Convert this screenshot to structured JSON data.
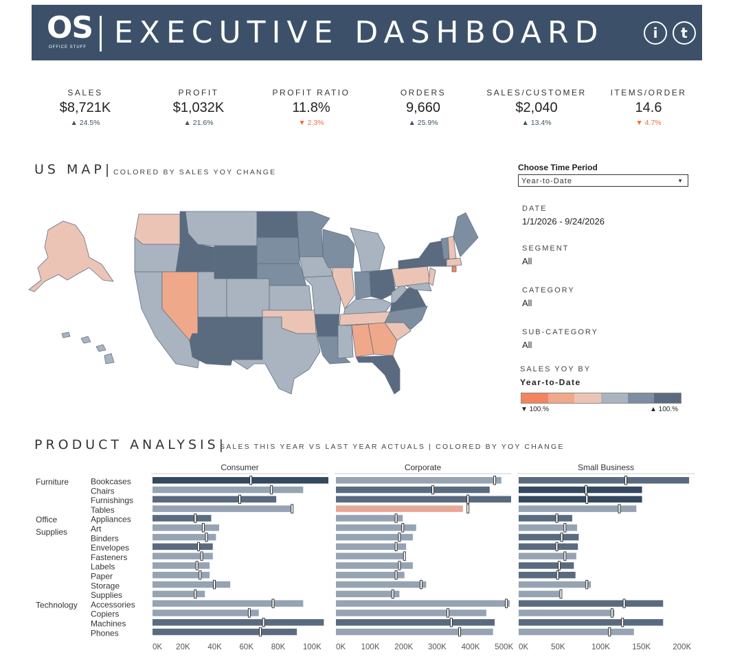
{
  "header": {
    "logo_text": "OS",
    "logo_sub": "OFFICE STUFF",
    "title": "EXECUTIVE DASHBOARD",
    "info_icon_label": "i",
    "tableau_icon_label": "t"
  },
  "kpis": [
    {
      "label": "SALES",
      "value": "$8,721K",
      "change": "▲ 24.5%",
      "direction": "up"
    },
    {
      "label": "PROFIT",
      "value": "$1,032K",
      "change": "▲ 21.6%",
      "direction": "up"
    },
    {
      "label": "PROFIT RATIO",
      "value": "11.8%",
      "change": "▼ 2.3%",
      "direction": "down"
    },
    {
      "label": "ORDERS",
      "value": "9,660",
      "change": "▲ 25.9%",
      "direction": "up"
    },
    {
      "label": "SALES/CUSTOMER",
      "value": "$2,040",
      "change": "▲ 13.4%",
      "direction": "up"
    },
    {
      "label": "ITEMS/ORDER",
      "value": "14.6",
      "change": "▼ 4.7%",
      "direction": "down"
    }
  ],
  "map": {
    "title": "US MAP|",
    "subtitle": "COLORED BY SALES YOY CHANGE"
  },
  "filters": {
    "time_period_label": "Choose Time Period",
    "time_period_value": "Year-to-Date",
    "date_label": "DATE",
    "date_value": "1/1/2026 - 9/24/2026",
    "segment_label": "SEGMENT",
    "segment_value": "All",
    "category_label": "CATEGORY",
    "category_value": "All",
    "subcategory_label": "SUB-CATEGORY",
    "subcategory_value": "All"
  },
  "legend": {
    "title": "SALES YOY BY",
    "subtitle": "Year-to-Date",
    "low_label": "▼ 100.%",
    "high_label": "▲ 100.%",
    "colors": [
      "#f4845f",
      "#f0a88a",
      "#ecc4b5",
      "#aab4c0",
      "#7d8ea1",
      "#5a6b80"
    ]
  },
  "colors": {
    "banner": "#3c5169",
    "up": "#3c5169",
    "down": "#f26b3a"
  },
  "product": {
    "title": "PRODUCT ANALYSIS|",
    "subtitle": "SALES THIS YEAR VS LAST YEAR ACTUALS | COLORED BY YOY CHANGE"
  },
  "chart_data": {
    "type": "bar",
    "categories": [
      {
        "category": "Furniture",
        "subs": [
          "Bookcases",
          "Chairs",
          "Furnishings",
          "Tables"
        ]
      },
      {
        "category": "Office\nSupplies",
        "subs": [
          "Appliances",
          "Art",
          "Binders",
          "Envelopes",
          "Fasteners",
          "Labels",
          "Paper",
          "Storage",
          "Supplies"
        ]
      },
      {
        "category": "Technology",
        "subs": [
          "Accessories",
          "Copiers",
          "Machines",
          "Phones"
        ]
      }
    ],
    "series": [
      {
        "name": "Consumer",
        "max": 110000,
        "ticks": [
          "0K",
          "20K",
          "40K",
          "60K",
          "80K",
          "100K"
        ],
        "tick_values": [
          0,
          20000,
          40000,
          60000,
          80000,
          100000
        ],
        "this_year": [
          112000,
          95000,
          78000,
          88000,
          37000,
          42000,
          40000,
          38000,
          38000,
          36000,
          36000,
          49000,
          33000,
          95000,
          67000,
          108000,
          91000
        ],
        "last_year": [
          62000,
          75000,
          55000,
          88000,
          27000,
          32000,
          34000,
          29000,
          31000,
          28000,
          30000,
          39000,
          27000,
          76000,
          61000,
          70000,
          68000
        ],
        "colors": [
          "#34495f",
          "#96a3b3",
          "#5a6b80",
          "#96a3b3",
          "#5a6b80",
          "#96a3b3",
          "#96a3b3",
          "#5a6b80",
          "#96a3b3",
          "#96a3b3",
          "#96a3b3",
          "#96a3b3",
          "#96a3b3",
          "#96a3b3",
          "#96a3b3",
          "#5a6b80",
          "#5a6b80"
        ]
      },
      {
        "name": "Corporate",
        "max": 520000,
        "ticks": [
          "0K",
          "100K",
          "200K",
          "300K",
          "400K",
          "500K"
        ],
        "tick_values": [
          0,
          100000,
          200000,
          300000,
          400000,
          500000
        ],
        "this_year": [
          495000,
          460000,
          540000,
          380000,
          200000,
          240000,
          230000,
          210000,
          205000,
          230000,
          205000,
          270000,
          190000,
          520000,
          450000,
          475000,
          470000
        ],
        "last_year": [
          475000,
          290000,
          395000,
          395000,
          180000,
          200000,
          190000,
          180000,
          205000,
          190000,
          180000,
          255000,
          170000,
          510000,
          335000,
          345000,
          370000
        ],
        "colors": [
          "#96a3b3",
          "#5a6b80",
          "#5a6b80",
          "#e8a897",
          "#96a3b3",
          "#96a3b3",
          "#96a3b3",
          "#96a3b3",
          "#96a3b3",
          "#96a3b3",
          "#96a3b3",
          "#96a3b3",
          "#96a3b3",
          "#96a3b3",
          "#96a3b3",
          "#5a6b80",
          "#96a3b3"
        ]
      },
      {
        "name": "Small Business",
        "max": 215000,
        "ticks": [
          "0K",
          "50K",
          "100K",
          "150K",
          "200K"
        ],
        "tick_values": [
          0,
          50000,
          100000,
          150000,
          200000
        ],
        "this_year": [
          210000,
          152000,
          152000,
          145000,
          66000,
          72000,
          74000,
          73000,
          71000,
          68000,
          70000,
          89000,
          53000,
          178000,
          118000,
          178000,
          142000
        ],
        "last_year": [
          132000,
          83000,
          84000,
          124000,
          47000,
          57000,
          53000,
          47000,
          57000,
          50000,
          48000,
          84000,
          52000,
          130000,
          115000,
          128000,
          112000
        ],
        "colors": [
          "#5a6b80",
          "#34495f",
          "#34495f",
          "#96a3b3",
          "#5a6b80",
          "#96a3b3",
          "#5a6b80",
          "#5a6b80",
          "#96a3b3",
          "#5a6b80",
          "#5a6b80",
          "#96a3b3",
          "#96a3b3",
          "#5a6b80",
          "#96a3b3",
          "#5a6b80",
          "#96a3b3"
        ]
      }
    ]
  }
}
